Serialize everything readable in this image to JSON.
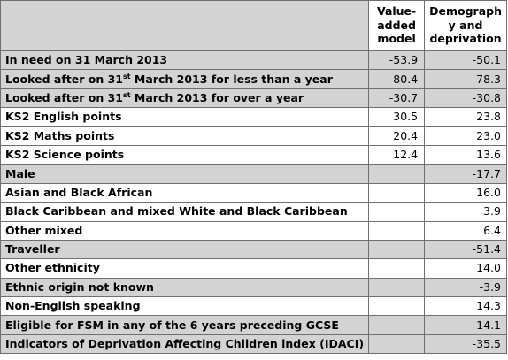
{
  "header": {
    "col1": [
      "Value-",
      "added",
      "model"
    ],
    "col2": [
      "Demograph",
      "y and",
      "deprivation"
    ]
  },
  "rows": [
    {
      "label": "In need on 31 March 2013",
      "v1": "-53.9",
      "v2": "-50.1",
      "shade": true
    },
    {
      "label_pre": "Looked after on 31",
      "label_sup": "st",
      "label_post": " March 2013 for less than a year",
      "v1": "-80.4",
      "v2": "-78.3",
      "shade": true
    },
    {
      "label_pre": "Looked after on 31",
      "label_sup": "st",
      "label_post": " March 2013 for over a year",
      "v1": "-30.7",
      "v2": "-30.8",
      "shade": true
    },
    {
      "label": "KS2 English points",
      "v1": "30.5",
      "v2": "23.8",
      "shade": false
    },
    {
      "label": "KS2 Maths points",
      "v1": "20.4",
      "v2": "23.0",
      "shade": false
    },
    {
      "label": "KS2 Science points",
      "v1": "12.4",
      "v2": "13.6",
      "shade": false
    },
    {
      "label": "Male",
      "v1": "",
      "v2": "-17.7",
      "shade": true
    },
    {
      "label": "Asian and Black African",
      "v1": "",
      "v2": "16.0",
      "shade": false
    },
    {
      "label": "Black Caribbean and mixed White and Black Caribbean",
      "v1": "",
      "v2": "3.9",
      "shade": false
    },
    {
      "label": "Other mixed",
      "v1": "",
      "v2": "6.4",
      "shade": false
    },
    {
      "label": "Traveller",
      "v1": "",
      "v2": "-51.4",
      "shade": true
    },
    {
      "label": "Other ethnicity",
      "v1": "",
      "v2": "14.0",
      "shade": false
    },
    {
      "label": "Ethnic origin not known",
      "v1": "",
      "v2": "-3.9",
      "shade": true
    },
    {
      "label": "Non-English speaking",
      "v1": "",
      "v2": "14.3",
      "shade": false
    },
    {
      "label": "Eligible for FSM in any of the 6 years preceding GCSE",
      "v1": "",
      "v2": "-14.1",
      "shade": true
    },
    {
      "label": "Indicators of Deprivation Affecting Children index (IDACI)",
      "v1": "",
      "v2": "-35.5",
      "shade": true
    }
  ]
}
